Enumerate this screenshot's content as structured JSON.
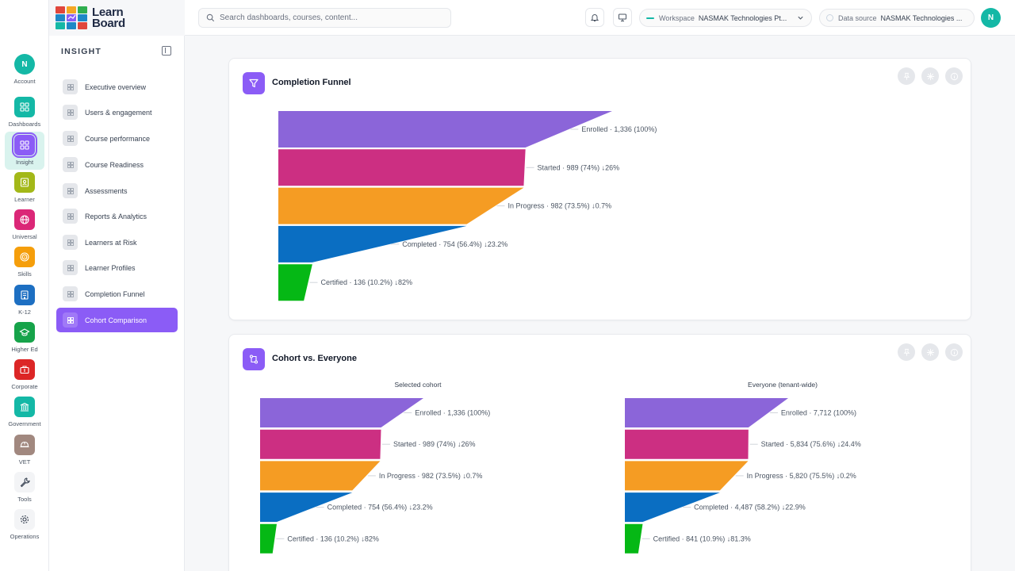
{
  "app": {
    "logo_line1": "Learn",
    "logo_line2": "Board"
  },
  "rail": [
    {
      "label": "Account",
      "icon": "account-avatar-icon",
      "color": "#14b8a6",
      "glyph": "N"
    },
    {
      "label": "Dashboards",
      "icon": "dashboards-icon",
      "color": "#14b8a6"
    },
    {
      "label": "Insight",
      "icon": "insight-icon",
      "color": "#8b5cf6",
      "active": true
    },
    {
      "label": "Learner",
      "icon": "learner-icon",
      "color": "#a3b818"
    },
    {
      "label": "Universal",
      "icon": "globe-icon",
      "color": "#db2777"
    },
    {
      "label": "Skills",
      "icon": "target-icon",
      "color": "#f59e0b"
    },
    {
      "label": "K-12",
      "icon": "school-icon",
      "color": "#1d6fc2"
    },
    {
      "label": "Higher Ed",
      "icon": "graduation-cap-icon",
      "color": "#16a34a"
    },
    {
      "label": "Corporate",
      "icon": "briefcase-icon",
      "color": "#dc2626"
    },
    {
      "label": "Government",
      "icon": "building-icon",
      "color": "#14b8a6"
    },
    {
      "label": "VET",
      "icon": "hard-hat-icon",
      "color": "#a1887f"
    },
    {
      "label": "Tools",
      "icon": "wrench-icon",
      "color": "#f3f4f6"
    },
    {
      "label": "Operations",
      "icon": "gear-icon",
      "color": "#f3f4f6"
    }
  ],
  "sidebar": {
    "title": "INSIGHT",
    "items": [
      {
        "label": "Executive overview",
        "icon": "layout-grid-icon"
      },
      {
        "label": "Users & engagement",
        "icon": "users-icon"
      },
      {
        "label": "Course performance",
        "icon": "book-icon"
      },
      {
        "label": "Course Readiness",
        "icon": "checklist-icon"
      },
      {
        "label": "Assessments",
        "icon": "clipboard-icon"
      },
      {
        "label": "Reports & Analytics",
        "icon": "bar-chart-icon"
      },
      {
        "label": "Learners at Risk",
        "icon": "shield-alert-icon"
      },
      {
        "label": "Learner Profiles",
        "icon": "id-card-icon"
      },
      {
        "label": "Completion Funnel",
        "icon": "funnel-icon"
      },
      {
        "label": "Cohort Comparison",
        "icon": "compare-arrows-icon",
        "active": true
      }
    ]
  },
  "topbar": {
    "search_placeholder": "Search dashboards, courses, content...",
    "workspace_key": "Workspace",
    "workspace_value": "NASMAK Technologies Pt...",
    "datasource_key": "Data source",
    "datasource_value": "NASMAK Technologies ...",
    "avatar_initial": "N"
  },
  "cards": {
    "funnel_title": "Completion Funnel",
    "cohort_title": "Cohort vs. Everyone",
    "cohort_left_title": "Selected cohort",
    "cohort_right_title": "Everyone (tenant-wide)"
  },
  "colors": {
    "accent": "#8b5cf6",
    "stage_enrolled": "#8b65d9",
    "stage_started": "#cc2f82",
    "stage_in_progress": "#f59c23",
    "stage_completed": "#0a6ec2",
    "stage_certified": "#05b815"
  },
  "chart_data": [
    {
      "type": "bar",
      "title": "Completion Funnel",
      "categories": [
        "Enrolled",
        "Started",
        "In Progress",
        "Completed",
        "Certified"
      ],
      "values": [
        1336,
        989,
        982,
        754,
        136
      ],
      "labels": [
        "Enrolled · 1,336 (100%)",
        "Started · 989 (74%) ↓26%",
        "In Progress · 982 (73.5%) ↓0.7%",
        "Completed · 754 (56.4%) ↓23.2%",
        "Certified · 136 (10.2%) ↓82%"
      ]
    },
    {
      "type": "bar",
      "title": "Selected cohort",
      "categories": [
        "Enrolled",
        "Started",
        "In Progress",
        "Completed",
        "Certified"
      ],
      "values": [
        1336,
        989,
        982,
        754,
        136
      ],
      "labels": [
        "Enrolled · 1,336 (100%)",
        "Started · 989 (74%) ↓26%",
        "In Progress · 982 (73.5%) ↓0.7%",
        "Completed · 754 (56.4%) ↓23.2%",
        "Certified · 136 (10.2%) ↓82%"
      ]
    },
    {
      "type": "bar",
      "title": "Everyone (tenant-wide)",
      "categories": [
        "Enrolled",
        "Started",
        "In Progress",
        "Completed",
        "Certified"
      ],
      "values": [
        7712,
        5834,
        5820,
        4487,
        841
      ],
      "labels": [
        "Enrolled · 7,712 (100%)",
        "Started · 5,834 (75.6%) ↓24.4%",
        "In Progress · 5,820 (75.5%) ↓0.2%",
        "Completed · 4,487 (58.2%) ↓22.9%",
        "Certified · 841 (10.9%) ↓81.3%"
      ]
    }
  ]
}
